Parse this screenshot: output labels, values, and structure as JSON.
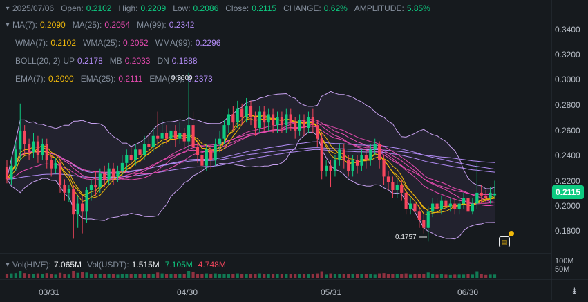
{
  "header": {
    "date": "2025/07/06",
    "open_label": "Open:",
    "open": "0.2102",
    "high_label": "High:",
    "high": "0.2209",
    "low_label": "Low:",
    "low": "0.2086",
    "close_label": "Close:",
    "close": "0.2115",
    "change_label": "CHANGE:",
    "change": "0.62%",
    "amplitude_label": "AMPLITUDE:",
    "amplitude": "5.85%"
  },
  "indicators": {
    "ma": {
      "ma7_label": "MA(7):",
      "ma7": "0.2090",
      "ma25_label": "MA(25):",
      "ma25": "0.2054",
      "ma99_label": "MA(99):",
      "ma99": "0.2342"
    },
    "wma": {
      "wma7_label": "WMA(7):",
      "wma7": "0.2102",
      "wma25_label": "WMA(25):",
      "wma25": "0.2052",
      "wma99_label": "WMA(99):",
      "wma99": "0.2296"
    },
    "boll": {
      "label": "BOLL(20, 2)",
      "up_label": "UP",
      "up": "0.2178",
      "mb_label": "MB",
      "mb": "0.2033",
      "dn_label": "DN",
      "dn": "0.1888"
    },
    "ema": {
      "ema7_label": "EMA(7):",
      "ema7": "0.2090",
      "ema25_label": "EMA(25):",
      "ema25": "0.2111",
      "ema99_label": "EMA(99):",
      "ema99": "0.2373"
    }
  },
  "colors": {
    "up": "#0ecb81",
    "down": "#f6465d",
    "ma7": "#f0b90b",
    "ma25": "#e64bb0",
    "ma99": "#b28cf5",
    "boll": "#c8a2f0",
    "background": "#161a1e",
    "grid": "#2b3139"
  },
  "current_price": "0.2115",
  "annotations": {
    "low": "0.1757",
    "high": "0.3009"
  },
  "volume": {
    "vol_hive_label": "Vol(HIVE):",
    "vol_hive": "7.065M",
    "vol_usdt_label": "Vol(USDT):",
    "vol_usdt": "1.515M",
    "ma5": "7.105M",
    "ma10": "4.748M",
    "axis": [
      "100M",
      "50M"
    ]
  },
  "chart_data": {
    "type": "candlestick",
    "title": "",
    "y_tick_labels": [
      "0.3400",
      "0.3200",
      "0.3000",
      "0.2800",
      "0.2600",
      "0.2400",
      "0.2200",
      "0.2000",
      "0.1800"
    ],
    "x_tick_labels": [
      "03/31",
      "04/30",
      "05/31",
      "06/30"
    ],
    "ylim": [
      0.168,
      0.352
    ],
    "grid": false,
    "candles": [
      {
        "o": 0.231,
        "c": 0.222,
        "h": 0.236,
        "l": 0.219
      },
      {
        "o": 0.222,
        "c": 0.232,
        "h": 0.238,
        "l": 0.218
      },
      {
        "o": 0.232,
        "c": 0.244,
        "h": 0.25,
        "l": 0.228
      },
      {
        "o": 0.244,
        "c": 0.258,
        "h": 0.278,
        "l": 0.236
      },
      {
        "o": 0.258,
        "c": 0.248,
        "h": 0.262,
        "l": 0.24
      },
      {
        "o": 0.248,
        "c": 0.242,
        "h": 0.252,
        "l": 0.236
      },
      {
        "o": 0.242,
        "c": 0.25,
        "h": 0.256,
        "l": 0.238
      },
      {
        "o": 0.25,
        "c": 0.24,
        "h": 0.254,
        "l": 0.234
      },
      {
        "o": 0.24,
        "c": 0.248,
        "h": 0.252,
        "l": 0.236
      },
      {
        "o": 0.248,
        "c": 0.236,
        "h": 0.252,
        "l": 0.23
      },
      {
        "o": 0.236,
        "c": 0.23,
        "h": 0.24,
        "l": 0.224
      },
      {
        "o": 0.23,
        "c": 0.234,
        "h": 0.238,
        "l": 0.226
      },
      {
        "o": 0.234,
        "c": 0.218,
        "h": 0.236,
        "l": 0.212
      },
      {
        "o": 0.218,
        "c": 0.212,
        "h": 0.222,
        "l": 0.206
      },
      {
        "o": 0.212,
        "c": 0.215,
        "h": 0.218,
        "l": 0.205
      },
      {
        "o": 0.215,
        "c": 0.196,
        "h": 0.218,
        "l": 0.178
      },
      {
        "o": 0.196,
        "c": 0.204,
        "h": 0.21,
        "l": 0.186
      },
      {
        "o": 0.204,
        "c": 0.198,
        "h": 0.21,
        "l": 0.182
      },
      {
        "o": 0.198,
        "c": 0.214,
        "h": 0.216,
        "l": 0.19
      },
      {
        "o": 0.214,
        "c": 0.218,
        "h": 0.222,
        "l": 0.206
      },
      {
        "o": 0.218,
        "c": 0.216,
        "h": 0.228,
        "l": 0.21
      },
      {
        "o": 0.216,
        "c": 0.226,
        "h": 0.23,
        "l": 0.212
      },
      {
        "o": 0.226,
        "c": 0.222,
        "h": 0.232,
        "l": 0.216
      },
      {
        "o": 0.222,
        "c": 0.23,
        "h": 0.234,
        "l": 0.218
      },
      {
        "o": 0.23,
        "c": 0.224,
        "h": 0.234,
        "l": 0.218
      },
      {
        "o": 0.224,
        "c": 0.228,
        "h": 0.232,
        "l": 0.22
      },
      {
        "o": 0.228,
        "c": 0.234,
        "h": 0.24,
        "l": 0.224
      },
      {
        "o": 0.234,
        "c": 0.24,
        "h": 0.244,
        "l": 0.228
      },
      {
        "o": 0.24,
        "c": 0.236,
        "h": 0.246,
        "l": 0.23
      },
      {
        "o": 0.236,
        "c": 0.244,
        "h": 0.248,
        "l": 0.232
      },
      {
        "o": 0.244,
        "c": 0.24,
        "h": 0.248,
        "l": 0.234
      },
      {
        "o": 0.24,
        "c": 0.248,
        "h": 0.254,
        "l": 0.236
      },
      {
        "o": 0.248,
        "c": 0.246,
        "h": 0.256,
        "l": 0.24
      },
      {
        "o": 0.246,
        "c": 0.254,
        "h": 0.26,
        "l": 0.242
      },
      {
        "o": 0.254,
        "c": 0.252,
        "h": 0.272,
        "l": 0.246
      },
      {
        "o": 0.252,
        "c": 0.256,
        "h": 0.266,
        "l": 0.246
      },
      {
        "o": 0.256,
        "c": 0.252,
        "h": 0.262,
        "l": 0.248
      },
      {
        "o": 0.252,
        "c": 0.258,
        "h": 0.262,
        "l": 0.246
      },
      {
        "o": 0.258,
        "c": 0.252,
        "h": 0.262,
        "l": 0.246
      },
      {
        "o": 0.252,
        "c": 0.256,
        "h": 0.264,
        "l": 0.248
      },
      {
        "o": 0.256,
        "c": 0.25,
        "h": 0.26,
        "l": 0.246
      },
      {
        "o": 0.25,
        "c": 0.262,
        "h": 0.301,
        "l": 0.244
      },
      {
        "o": 0.262,
        "c": 0.246,
        "h": 0.272,
        "l": 0.24
      },
      {
        "o": 0.246,
        "c": 0.24,
        "h": 0.25,
        "l": 0.234
      },
      {
        "o": 0.24,
        "c": 0.232,
        "h": 0.244,
        "l": 0.226
      },
      {
        "o": 0.232,
        "c": 0.244,
        "h": 0.248,
        "l": 0.228
      },
      {
        "o": 0.244,
        "c": 0.236,
        "h": 0.248,
        "l": 0.23
      },
      {
        "o": 0.236,
        "c": 0.248,
        "h": 0.252,
        "l": 0.232
      },
      {
        "o": 0.248,
        "c": 0.252,
        "h": 0.258,
        "l": 0.242
      },
      {
        "o": 0.252,
        "c": 0.262,
        "h": 0.266,
        "l": 0.248
      },
      {
        "o": 0.262,
        "c": 0.27,
        "h": 0.274,
        "l": 0.256
      },
      {
        "o": 0.27,
        "c": 0.264,
        "h": 0.276,
        "l": 0.258
      },
      {
        "o": 0.264,
        "c": 0.274,
        "h": 0.28,
        "l": 0.26
      },
      {
        "o": 0.274,
        "c": 0.268,
        "h": 0.278,
        "l": 0.262
      },
      {
        "o": 0.268,
        "c": 0.276,
        "h": 0.282,
        "l": 0.264
      },
      {
        "o": 0.276,
        "c": 0.268,
        "h": 0.28,
        "l": 0.262
      },
      {
        "o": 0.268,
        "c": 0.26,
        "h": 0.272,
        "l": 0.254
      },
      {
        "o": 0.26,
        "c": 0.272,
        "h": 0.276,
        "l": 0.256
      },
      {
        "o": 0.272,
        "c": 0.264,
        "h": 0.276,
        "l": 0.258
      },
      {
        "o": 0.264,
        "c": 0.27,
        "h": 0.274,
        "l": 0.258
      },
      {
        "o": 0.27,
        "c": 0.262,
        "h": 0.274,
        "l": 0.256
      },
      {
        "o": 0.262,
        "c": 0.268,
        "h": 0.272,
        "l": 0.256
      },
      {
        "o": 0.268,
        "c": 0.262,
        "h": 0.272,
        "l": 0.256
      },
      {
        "o": 0.262,
        "c": 0.27,
        "h": 0.274,
        "l": 0.256
      },
      {
        "o": 0.27,
        "c": 0.264,
        "h": 0.274,
        "l": 0.258
      },
      {
        "o": 0.264,
        "c": 0.258,
        "h": 0.268,
        "l": 0.252
      },
      {
        "o": 0.258,
        "c": 0.266,
        "h": 0.27,
        "l": 0.254
      },
      {
        "o": 0.266,
        "c": 0.26,
        "h": 0.27,
        "l": 0.254
      },
      {
        "o": 0.26,
        "c": 0.268,
        "h": 0.272,
        "l": 0.256
      },
      {
        "o": 0.268,
        "c": 0.262,
        "h": 0.274,
        "l": 0.256
      },
      {
        "o": 0.262,
        "c": 0.252,
        "h": 0.266,
        "l": 0.246
      },
      {
        "o": 0.252,
        "c": 0.228,
        "h": 0.256,
        "l": 0.222
      },
      {
        "o": 0.228,
        "c": 0.232,
        "h": 0.236,
        "l": 0.224
      },
      {
        "o": 0.232,
        "c": 0.228,
        "h": 0.236,
        "l": 0.216
      },
      {
        "o": 0.228,
        "c": 0.236,
        "h": 0.24,
        "l": 0.224
      },
      {
        "o": 0.236,
        "c": 0.244,
        "h": 0.248,
        "l": 0.232
      },
      {
        "o": 0.244,
        "c": 0.236,
        "h": 0.248,
        "l": 0.23
      },
      {
        "o": 0.236,
        "c": 0.228,
        "h": 0.24,
        "l": 0.224
      },
      {
        "o": 0.228,
        "c": 0.236,
        "h": 0.24,
        "l": 0.224
      },
      {
        "o": 0.236,
        "c": 0.232,
        "h": 0.24,
        "l": 0.226
      },
      {
        "o": 0.232,
        "c": 0.24,
        "h": 0.244,
        "l": 0.228
      },
      {
        "o": 0.24,
        "c": 0.236,
        "h": 0.244,
        "l": 0.23
      },
      {
        "o": 0.236,
        "c": 0.244,
        "h": 0.248,
        "l": 0.232
      },
      {
        "o": 0.244,
        "c": 0.248,
        "h": 0.252,
        "l": 0.24
      },
      {
        "o": 0.248,
        "c": 0.236,
        "h": 0.25,
        "l": 0.23
      },
      {
        "o": 0.236,
        "c": 0.224,
        "h": 0.24,
        "l": 0.218
      },
      {
        "o": 0.224,
        "c": 0.22,
        "h": 0.228,
        "l": 0.214
      },
      {
        "o": 0.22,
        "c": 0.214,
        "h": 0.224,
        "l": 0.208
      },
      {
        "o": 0.214,
        "c": 0.218,
        "h": 0.222,
        "l": 0.208
      },
      {
        "o": 0.218,
        "c": 0.212,
        "h": 0.222,
        "l": 0.206
      },
      {
        "o": 0.212,
        "c": 0.2,
        "h": 0.216,
        "l": 0.196
      },
      {
        "o": 0.2,
        "c": 0.204,
        "h": 0.208,
        "l": 0.196
      },
      {
        "o": 0.204,
        "c": 0.198,
        "h": 0.208,
        "l": 0.192
      },
      {
        "o": 0.198,
        "c": 0.192,
        "h": 0.202,
        "l": 0.186
      },
      {
        "o": 0.192,
        "c": 0.186,
        "h": 0.196,
        "l": 0.182
      },
      {
        "o": 0.186,
        "c": 0.198,
        "h": 0.202,
        "l": 0.176
      },
      {
        "o": 0.198,
        "c": 0.204,
        "h": 0.208,
        "l": 0.194
      },
      {
        "o": 0.204,
        "c": 0.2,
        "h": 0.208,
        "l": 0.196
      },
      {
        "o": 0.2,
        "c": 0.206,
        "h": 0.21,
        "l": 0.196
      },
      {
        "o": 0.206,
        "c": 0.202,
        "h": 0.21,
        "l": 0.198
      },
      {
        "o": 0.202,
        "c": 0.204,
        "h": 0.208,
        "l": 0.198
      },
      {
        "o": 0.204,
        "c": 0.2,
        "h": 0.208,
        "l": 0.196
      },
      {
        "o": 0.2,
        "c": 0.204,
        "h": 0.208,
        "l": 0.196
      },
      {
        "o": 0.204,
        "c": 0.208,
        "h": 0.212,
        "l": 0.2
      },
      {
        "o": 0.208,
        "c": 0.198,
        "h": 0.212,
        "l": 0.194
      },
      {
        "o": 0.198,
        "c": 0.204,
        "h": 0.208,
        "l": 0.196
      },
      {
        "o": 0.204,
        "c": 0.212,
        "h": 0.234,
        "l": 0.2
      },
      {
        "o": 0.212,
        "c": 0.21,
        "h": 0.218,
        "l": 0.204
      },
      {
        "o": 0.21,
        "c": 0.208,
        "h": 0.214,
        "l": 0.204
      },
      {
        "o": 0.208,
        "c": 0.212,
        "h": 0.216,
        "l": 0.204
      },
      {
        "o": 0.2102,
        "c": 0.2115,
        "h": 0.2209,
        "l": 0.2086
      }
    ]
  }
}
